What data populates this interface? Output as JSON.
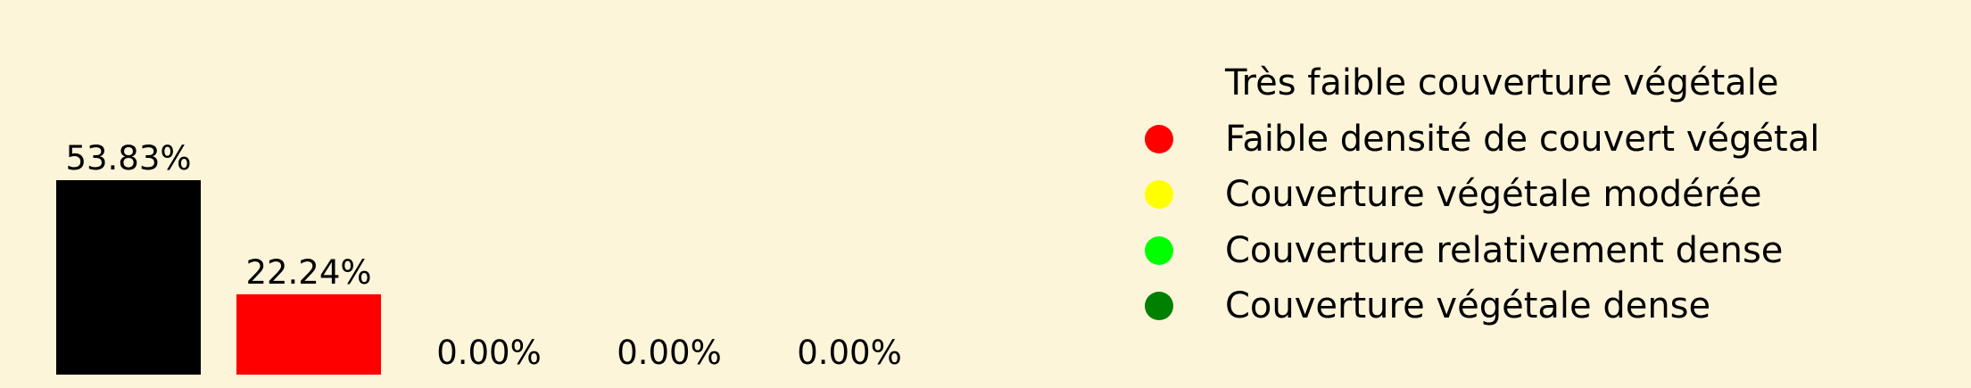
{
  "chart_data": {
    "type": "bar",
    "categories": [
      "Très faible couverture végétale",
      "Faible densité de couvert végétal",
      "Couverture végétale modérée",
      "Couverture relativement dense",
      "Couverture végétale dense"
    ],
    "values": [
      53.83,
      22.24,
      0.0,
      0.0,
      0.0
    ],
    "value_labels": [
      "53.83%",
      "22.24%",
      "0.00%",
      "0.00%",
      "0.00%"
    ],
    "colors": [
      "#000000",
      "#ff0000",
      "#ffff00",
      "#00ff00",
      "#008000"
    ],
    "ylim": [
      0,
      53.83
    ],
    "grid": false,
    "legend_position": "right"
  },
  "legend": {
    "items": [
      {
        "label": "Très faible couverture végétale",
        "color": "#000000"
      },
      {
        "label": "Faible densité de couvert végétal",
        "color": "#ff0000"
      },
      {
        "label": "Couverture végétale modérée",
        "color": "#ffff00"
      },
      {
        "label": "Couverture relativement dense",
        "color": "#00ff00"
      },
      {
        "label": "Couverture végétale dense",
        "color": "#008000"
      }
    ]
  },
  "colors": {
    "background": "#fdf5d9"
  }
}
